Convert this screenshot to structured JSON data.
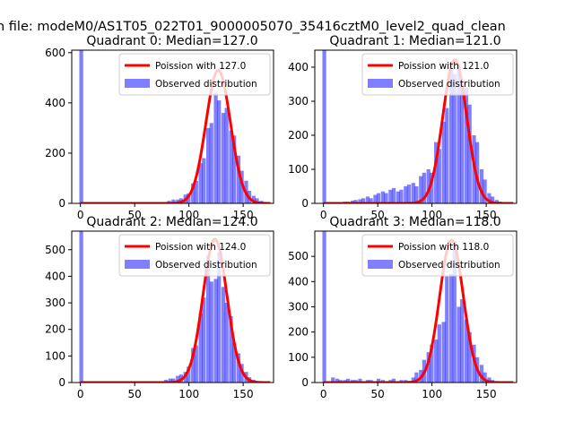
{
  "figure": {
    "suptitle": "n file: modeM0/AS1T05_022T01_9000005070_35416cztM0_level2_quad_clean"
  },
  "colors": {
    "observed": "#0000ff",
    "poisson": "#ff0000",
    "axes": "#000000",
    "background": "#ffffff"
  },
  "legend": {
    "observed_label": "Observed distribution"
  },
  "chart_data": [
    {
      "type": "bar",
      "title": "Quadrant 0: Median=127.0",
      "median": 127.0,
      "poisson_label": "Poission with 127.0",
      "xlim": [
        -8,
        178
      ],
      "ylim": [
        0,
        610
      ],
      "xticks": [
        0,
        50,
        100,
        150
      ],
      "yticks": [
        0,
        200,
        400,
        600
      ],
      "legend_position": "top-right",
      "bin_width": 3.5,
      "zero_bin": 650,
      "bins": [
        [
          80,
          10
        ],
        [
          84,
          15
        ],
        [
          88,
          15
        ],
        [
          91,
          20
        ],
        [
          95,
          35
        ],
        [
          98,
          40
        ],
        [
          102,
          80
        ],
        [
          105,
          90
        ],
        [
          109,
          160
        ],
        [
          112,
          180
        ],
        [
          116,
          300
        ],
        [
          119,
          320
        ],
        [
          123,
          440
        ],
        [
          126,
          410
        ],
        [
          130,
          360
        ],
        [
          133,
          380
        ],
        [
          137,
          290
        ],
        [
          140,
          270
        ],
        [
          144,
          190
        ],
        [
          147,
          130
        ],
        [
          151,
          90
        ],
        [
          154,
          50
        ],
        [
          158,
          30
        ],
        [
          161,
          20
        ],
        [
          165,
          10
        ],
        [
          168,
          5
        ],
        [
          172,
          3
        ]
      ],
      "poisson_peak": 530,
      "poisson_sigma": 11.3
    },
    {
      "type": "bar",
      "title": "Quadrant 1: Median=121.0",
      "median": 121.0,
      "poisson_label": "Poission with 121.0",
      "xlim": [
        -8,
        178
      ],
      "ylim": [
        0,
        450
      ],
      "xticks": [
        0,
        50,
        100,
        150
      ],
      "yticks": [
        0,
        100,
        200,
        300,
        400
      ],
      "legend_position": "top-right",
      "bin_width": 3.5,
      "zero_bin": 500,
      "bins": [
        [
          18,
          5
        ],
        [
          21,
          5
        ],
        [
          25,
          8
        ],
        [
          28,
          10
        ],
        [
          32,
          12
        ],
        [
          35,
          15
        ],
        [
          39,
          20
        ],
        [
          42,
          15
        ],
        [
          46,
          25
        ],
        [
          49,
          30
        ],
        [
          53,
          35
        ],
        [
          56,
          30
        ],
        [
          60,
          40
        ],
        [
          63,
          45
        ],
        [
          67,
          35
        ],
        [
          70,
          40
        ],
        [
          74,
          50
        ],
        [
          77,
          55
        ],
        [
          81,
          60
        ],
        [
          84,
          50
        ],
        [
          88,
          80
        ],
        [
          91,
          90
        ],
        [
          95,
          100
        ],
        [
          98,
          90
        ],
        [
          102,
          180
        ],
        [
          105,
          160
        ],
        [
          109,
          240
        ],
        [
          112,
          280
        ],
        [
          116,
          400
        ],
        [
          119,
          380
        ],
        [
          123,
          410
        ],
        [
          126,
          360
        ],
        [
          130,
          340
        ],
        [
          133,
          290
        ],
        [
          137,
          200
        ],
        [
          140,
          180
        ],
        [
          144,
          100
        ],
        [
          147,
          70
        ],
        [
          151,
          30
        ],
        [
          154,
          20
        ],
        [
          158,
          10
        ],
        [
          161,
          5
        ],
        [
          165,
          3
        ]
      ],
      "poisson_peak": 422,
      "poisson_sigma": 11.0
    },
    {
      "type": "bar",
      "title": "Quadrant 2: Median=124.0",
      "median": 124.0,
      "poisson_label": "Poission with 124.0",
      "xlim": [
        -8,
        178
      ],
      "ylim": [
        0,
        570
      ],
      "xticks": [
        0,
        50,
        100,
        150
      ],
      "yticks": [
        0,
        100,
        200,
        300,
        400,
        500
      ],
      "legend_position": "top-right",
      "bin_width": 3.5,
      "zero_bin": 600,
      "bins": [
        [
          77,
          10
        ],
        [
          81,
          15
        ],
        [
          84,
          15
        ],
        [
          88,
          25
        ],
        [
          91,
          30
        ],
        [
          95,
          40
        ],
        [
          98,
          60
        ],
        [
          102,
          130
        ],
        [
          105,
          140
        ],
        [
          109,
          260
        ],
        [
          112,
          320
        ],
        [
          116,
          480
        ],
        [
          119,
          380
        ],
        [
          123,
          390
        ],
        [
          126,
          490
        ],
        [
          130,
          360
        ],
        [
          133,
          300
        ],
        [
          137,
          250
        ],
        [
          140,
          150
        ],
        [
          144,
          110
        ],
        [
          147,
          70
        ],
        [
          151,
          40
        ],
        [
          154,
          20
        ],
        [
          158,
          10
        ],
        [
          161,
          5
        ],
        [
          165,
          3
        ]
      ],
      "poisson_peak": 540,
      "poisson_sigma": 11.1
    },
    {
      "type": "bar",
      "title": "Quadrant 3: Median=118.0",
      "median": 118.0,
      "poisson_label": "Poission with 118.0",
      "xlim": [
        -8,
        178
      ],
      "ylim": [
        0,
        600
      ],
      "xticks": [
        0,
        50,
        100,
        150
      ],
      "yticks": [
        0,
        100,
        200,
        300,
        400,
        500
      ],
      "legend_position": "top-right",
      "bin_width": 3.5,
      "zero_bin": 650,
      "bins": [
        [
          7,
          20
        ],
        [
          11,
          15
        ],
        [
          14,
          10
        ],
        [
          18,
          10
        ],
        [
          21,
          15
        ],
        [
          25,
          10
        ],
        [
          28,
          10
        ],
        [
          32,
          15
        ],
        [
          39,
          10
        ],
        [
          42,
          10
        ],
        [
          49,
          15
        ],
        [
          53,
          10
        ],
        [
          60,
          10
        ],
        [
          63,
          15
        ],
        [
          70,
          10
        ],
        [
          74,
          10
        ],
        [
          81,
          20
        ],
        [
          84,
          40
        ],
        [
          88,
          50
        ],
        [
          91,
          90
        ],
        [
          95,
          120
        ],
        [
          98,
          150
        ],
        [
          102,
          170
        ],
        [
          105,
          230
        ],
        [
          109,
          240
        ],
        [
          112,
          420
        ],
        [
          116,
          430
        ],
        [
          119,
          560
        ],
        [
          123,
          300
        ],
        [
          126,
          330
        ],
        [
          130,
          250
        ],
        [
          133,
          200
        ],
        [
          137,
          150
        ],
        [
          140,
          100
        ],
        [
          144,
          70
        ],
        [
          147,
          40
        ],
        [
          151,
          20
        ],
        [
          154,
          10
        ],
        [
          158,
          5
        ]
      ],
      "poisson_peak": 565,
      "poisson_sigma": 10.9
    }
  ]
}
